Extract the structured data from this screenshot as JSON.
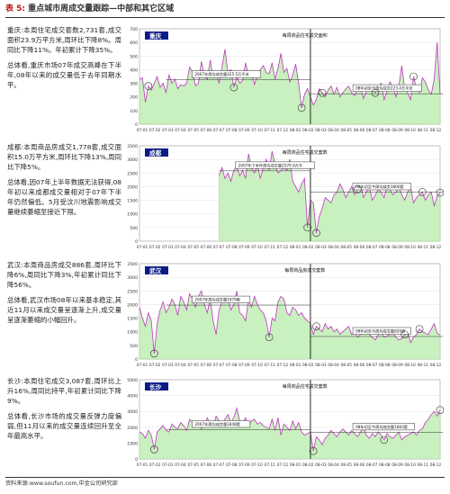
{
  "header": {
    "table_no": "表 5:",
    "title": "重点城市周成交量跟踪—中部和其它区域"
  },
  "footer": {
    "source": "资料来源:www.soufun.com,中金公司研究部"
  },
  "colors": {
    "header_number": "#b71c1c",
    "line": "#c03ac0",
    "area_fill": "#c9f0bf",
    "area_edge": "#8fcf80",
    "tag_bg": "#0b1c86",
    "tag_text": "#ffffff"
  },
  "panels": [
    {
      "paragraphs": [
        "重庆:本周住宅成交套数2,731套,成交面积23.9万平方米,周环比下降8%。周同比下降11%。年初累计下降35%。",
        "总体看,重庆市场07年成交高峰在下半年,08年以来的成交量低于去年同期水平。"
      ]
    },
    {
      "paragraphs": [
        "成都:本周商品房成交1,778套,成交面积15.0万平方米,周环比下降13%,周同比下降5%。",
        "总体看,因07年上半年数据无法获得,08年初以来成都成交量相对于07年下半年仍然偏低。5月受汶川地震影响成交量继续萎缩至接近下限。"
      ]
    },
    {
      "paragraphs": [
        "武汉:本周商品房成交886套,周环比下降6%,周同比下降3%,年初累计同比下降56%。",
        "总体看,武汉市场08年以来基本稳定,其近11月以来成交量呈逐渐上升,成交量呈逐渐萎缩的小幅回升。"
      ]
    },
    {
      "paragraphs": [
        "长沙:本周住宅成交3,087套,周环比上升16%,周同比持平,年初累计同比下降9%。",
        "总体看,长沙市场的成交量反弹力度偏弱,但11月以来的成交量连续回升至全年最高水平。"
      ]
    }
  ],
  "chart_data": [
    {
      "type": "area",
      "city": "重庆",
      "title": "每周商品住宅成交面积",
      "ylim": [
        0,
        700
      ],
      "yticks": [
        "0",
        "100",
        "200",
        "300",
        "400",
        "500",
        "600",
        "700"
      ],
      "xticks": [
        "07-01",
        "07-02",
        "07-03",
        "07-04",
        "07-05",
        "07-06",
        "07-07",
        "07-08",
        "07-09",
        "07-10",
        "07-11",
        "07-12",
        "08-01",
        "08-02",
        "08-03",
        "08-04",
        "08-05",
        "08-06",
        "08-07",
        "08-08",
        "08-09",
        "08-10",
        "08-11",
        "08-12"
      ],
      "values": [
        330,
        340,
        160,
        280,
        250,
        300,
        350,
        270,
        300,
        230,
        360,
        300,
        330,
        260,
        290,
        280,
        300,
        420,
        380,
        280,
        300,
        460,
        350,
        330,
        470,
        340,
        380,
        300,
        420,
        550,
        380,
        400,
        270,
        350,
        300,
        320,
        450,
        350,
        390,
        290,
        360,
        400,
        430,
        380,
        370,
        450,
        330,
        410,
        520,
        380,
        410,
        310,
        360,
        440,
        300,
        120,
        220,
        260,
        200,
        140,
        180,
        260,
        230,
        200,
        250,
        280,
        220,
        270,
        200,
        230,
        260,
        280,
        230,
        210,
        250,
        270,
        190,
        240,
        290,
        250,
        230,
        270,
        300,
        180,
        240,
        310,
        270,
        200,
        280,
        430,
        260,
        230,
        180,
        350,
        260,
        230,
        340,
        310,
        250,
        220,
        330,
        600,
        220
      ],
      "annotations": [
        {
          "text": "2007年周均成交量325.5万平米",
          "value": 325.5,
          "from": 9,
          "to": 58
        },
        {
          "text": "08年初至今周均成交223.4万平米",
          "value": 223.4,
          "from": 58,
          "to": 103
        }
      ],
      "markers": [
        3,
        32,
        55,
        62,
        80,
        93
      ],
      "divider": 58
    },
    {
      "type": "area",
      "city": "成都",
      "title": "每周商品住宅成交套数",
      "ylim": [
        0,
        3500
      ],
      "yticks": [
        "0",
        "500",
        "1000",
        "1500",
        "2000",
        "2500",
        "3000",
        "3500"
      ],
      "xticks": [
        "07-01",
        "07-02",
        "07-03",
        "07-04",
        "07-05",
        "07-06",
        "07-07",
        "07-08",
        "07-09",
        "07-10",
        "07-11",
        "07-12",
        "08-01",
        "08-02",
        "08-03",
        "08-04",
        "08-05",
        "08-06",
        "08-07",
        "08-08",
        "08-09",
        "08-10",
        "08-11",
        "08-12"
      ],
      "values": [
        null,
        null,
        null,
        null,
        null,
        null,
        null,
        null,
        null,
        null,
        null,
        null,
        null,
        null,
        null,
        null,
        null,
        null,
        null,
        null,
        null,
        null,
        null,
        null,
        null,
        null,
        null,
        2400,
        2700,
        2300,
        2500,
        2200,
        2600,
        2750,
        2400,
        2600,
        2300,
        3200,
        2700,
        2500,
        2800,
        2300,
        2700,
        3000,
        2600,
        3300,
        2800,
        2500,
        2600,
        2700,
        2600,
        3000,
        2200,
        2000,
        1800,
        2100,
        2300,
        500,
        1500,
        1400,
        300,
        900,
        1200,
        1600,
        1500,
        1400,
        1700,
        1800,
        2100,
        1900,
        1600,
        1800,
        2000,
        1700,
        1900,
        2100,
        1600,
        1800,
        2000,
        1500,
        1700,
        1900,
        1800,
        1600,
        2000,
        1900,
        1700,
        1800,
        2000,
        1700,
        1500,
        1800,
        2000,
        1400,
        1600,
        1700,
        1800,
        1500,
        1700,
        1800,
        1300,
        1650,
        1780
      ],
      "annotations": [
        {
          "text": "2007年下半年周均成交量2579.9万平",
          "value": 2579.9,
          "from": 27,
          "to": 58
        },
        {
          "text": "08年初至今周均成交1800套",
          "value": 1800,
          "from": 58,
          "to": 103
        }
      ],
      "markers": [
        57,
        60,
        74,
        96,
        102
      ],
      "divider": 58
    },
    {
      "type": "area",
      "city": "武汉",
      "title": "每周商品房成交套数",
      "ylim": [
        0,
        3500
      ],
      "yticks": [
        "0",
        "500",
        "1000",
        "1500",
        "2000",
        "2500",
        "3000",
        "3500"
      ],
      "xticks": [
        "07-01",
        "07-02",
        "07-03",
        "07-04",
        "07-05",
        "07-06",
        "07-07",
        "07-08",
        "07-09",
        "07-10",
        "07-11",
        "07-12",
        "08-01",
        "08-02",
        "08-03",
        "08-04",
        "08-05",
        "08-06",
        "08-07",
        "08-08",
        "08-09",
        "08-10",
        "08-11",
        "08-12"
      ],
      "values": [
        1900,
        1500,
        1200,
        1700,
        1400,
        200,
        1300,
        1800,
        2100,
        1700,
        1900,
        2200,
        2000,
        1600,
        2300,
        2100,
        1800,
        2400,
        2200,
        1900,
        2300,
        2500,
        2000,
        1700,
        2200,
        1400,
        900,
        1800,
        2100,
        2300,
        2200,
        1800,
        2000,
        2500,
        1700,
        1600,
        1400,
        2200,
        1900,
        2300,
        2000,
        1800,
        1700,
        1400,
        800,
        1500,
        1400,
        2100,
        2300,
        2200,
        1700,
        1600,
        1900,
        1800,
        1600,
        1700,
        1500,
        1400,
        1300,
        900,
        1200,
        1100,
        1000,
        1300,
        1100,
        1200,
        1000,
        1100,
        900,
        1000,
        1100,
        1200,
        900,
        1000,
        800,
        900,
        1000,
        1100,
        900,
        800,
        700,
        900,
        1000,
        800,
        850,
        900,
        950,
        800,
        700,
        750,
        900,
        1000,
        600,
        800,
        900,
        1100,
        1000,
        950,
        900,
        1100,
        1300,
        950,
        886
      ],
      "annotations": [
        {
          "text": "2007年周均成交量1979套",
          "value": 1979,
          "from": 9,
          "to": 58
        },
        {
          "text": "08年初至今周均成交量826套",
          "value": 826,
          "from": 58,
          "to": 103
        }
      ],
      "markers": [
        5,
        44,
        60,
        90,
        95
      ],
      "divider": 58
    },
    {
      "type": "area",
      "city": "长沙",
      "title": "每周商品住宅成交套数",
      "ylim": [
        0,
        5000
      ],
      "yticks": [
        "0",
        "1000",
        "2000",
        "3000",
        "4000",
        "5000"
      ],
      "xticks": [
        "07-01",
        "07-02",
        "07-03",
        "07-04",
        "07-05",
        "07-06",
        "07-07",
        "07-08",
        "07-09",
        "07-10",
        "07-11",
        "07-12",
        "08-01",
        "08-02",
        "08-03",
        "08-04",
        "08-05",
        "08-06",
        "08-07",
        "08-08",
        "08-09",
        "08-10",
        "08-11",
        "08-12"
      ],
      "values": [
        1700,
        1600,
        1300,
        1800,
        1500,
        600,
        1700,
        1900,
        2100,
        1800,
        1700,
        2200,
        2000,
        1900,
        2300,
        2100,
        1800,
        2500,
        2300,
        2000,
        2400,
        1900,
        2100,
        2600,
        2200,
        2000,
        2700,
        2400,
        2200,
        2500,
        2800,
        2300,
        2600,
        3200,
        2400,
        2300,
        2600,
        2100,
        2400,
        2500,
        2200,
        2300,
        2100,
        2000,
        1900,
        2500,
        1800,
        2600,
        1500,
        2200,
        2000,
        1800,
        2400,
        1900,
        2300,
        1700,
        1500,
        1600,
        1700,
        500,
        1400,
        1200,
        900,
        1300,
        1500,
        1800,
        1600,
        1400,
        1700,
        1900,
        1700,
        1500,
        1800,
        1600,
        1400,
        1700,
        2000,
        1500,
        1300,
        1600,
        1400,
        1700,
        1500,
        1200,
        1600,
        1400,
        1300,
        1500,
        1700,
        1200,
        1400,
        1500,
        1600,
        1700,
        1500,
        1800,
        1900,
        2300,
        2500,
        2800,
        3000,
        2700,
        3087
      ],
      "annotations": [
        {
          "text": "2007年周均成交量1848套",
          "value": 1848,
          "from": 9,
          "to": 58
        },
        {
          "text": "08年初至今周均成交量1683套",
          "value": 1683,
          "from": 58,
          "to": 103
        }
      ],
      "markers": [
        5,
        59,
        83,
        102
      ],
      "divider": 58
    }
  ]
}
